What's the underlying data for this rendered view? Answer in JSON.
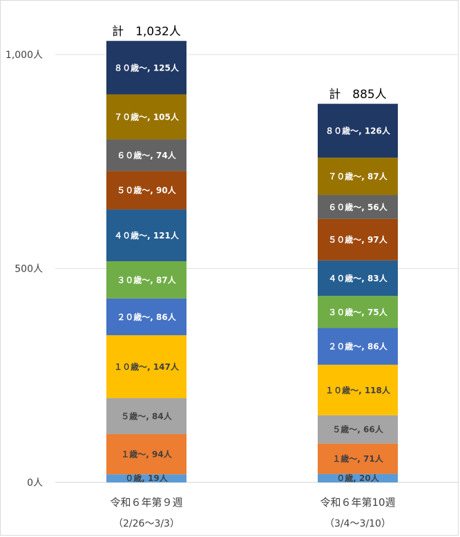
{
  "chart_data": {
    "type": "bar",
    "stacked": true,
    "ylim": [
      0,
      1000
    ],
    "y_ticks": [
      {
        "value": 0,
        "label": "0人"
      },
      {
        "value": 500,
        "label": "500人"
      },
      {
        "value": 1000,
        "label": "1,000人"
      }
    ],
    "grid": true,
    "categories": [
      {
        "line1": "令和６年第９週",
        "line2": "（2/26～3/3）",
        "total_label": "計　1,032人"
      },
      {
        "line1": "令和６年第10週",
        "line2": "（3/4～3/10）",
        "total_label": "計　885人"
      }
    ],
    "series": [
      {
        "name": "０歳",
        "color": "#5b9bd5",
        "text_color": "#404040",
        "values": [
          19,
          20
        ],
        "labels": [
          "０歳, 19人",
          "０歳, 20人"
        ]
      },
      {
        "name": "１歳～",
        "color": "#ed7d31",
        "text_color": "#404040",
        "values": [
          94,
          71
        ],
        "labels": [
          "１歳～, 94人",
          "１歳～, 71人"
        ]
      },
      {
        "name": "５歳～",
        "color": "#a5a5a5",
        "text_color": "#404040",
        "values": [
          84,
          66
        ],
        "labels": [
          "５歳～, 84人",
          "５歳～, 66人"
        ]
      },
      {
        "name": "１０歳～",
        "color": "#ffc000",
        "text_color": "#404040",
        "values": [
          147,
          118
        ],
        "labels": [
          "１０歳～, 147人",
          "１０歳～, 118人"
        ]
      },
      {
        "name": "２０歳～",
        "color": "#4472c4",
        "text_color": "#ffffff",
        "values": [
          86,
          86
        ],
        "labels": [
          "２０歳～, 86人",
          "２０歳～, 86人"
        ]
      },
      {
        "name": "３０歳～",
        "color": "#70ad47",
        "text_color": "#ffffff",
        "values": [
          87,
          75
        ],
        "labels": [
          "３０歳～, 87人",
          "３０歳～, 75人"
        ]
      },
      {
        "name": "４０歳～",
        "color": "#255e91",
        "text_color": "#ffffff",
        "values": [
          121,
          83
        ],
        "labels": [
          "４０歳～, 121人",
          "４０歳～, 83人"
        ]
      },
      {
        "name": "５０歳～",
        "color": "#9e480e",
        "text_color": "#ffffff",
        "values": [
          90,
          97
        ],
        "labels": [
          "５０歳～, 90人",
          "５０歳～, 97人"
        ]
      },
      {
        "name": "６０歳～",
        "color": "#636363",
        "text_color": "#ffffff",
        "values": [
          74,
          56
        ],
        "labels": [
          "６０歳～, 74人",
          "６０歳～, 56人"
        ]
      },
      {
        "name": "７０歳～",
        "color": "#997300",
        "text_color": "#ffffff",
        "values": [
          105,
          87
        ],
        "labels": [
          "７０歳～, 105人",
          "７０歳～, 87人"
        ]
      },
      {
        "name": "８０歳～",
        "color": "#203864",
        "text_color": "#ffffff",
        "values": [
          125,
          126
        ],
        "labels": [
          "８０歳～, 125人",
          "８０歳～, 126人"
        ]
      }
    ]
  }
}
